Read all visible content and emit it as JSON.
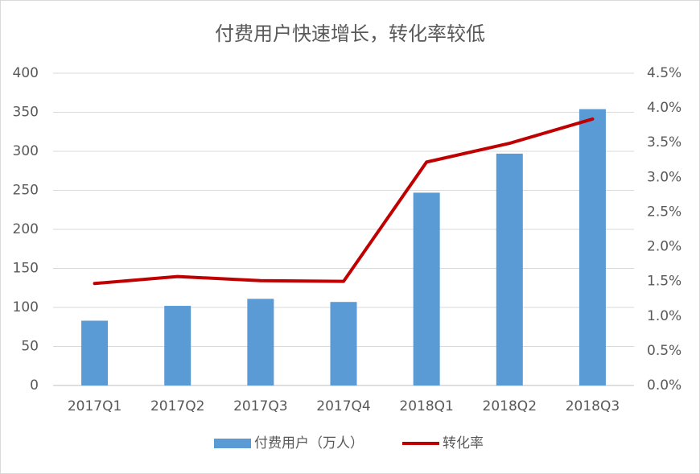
{
  "chart_data": {
    "type": "bar+line",
    "title": "付费用户快速增长，转化率较低",
    "categories": [
      "2017Q1",
      "2017Q2",
      "2017Q3",
      "2017Q4",
      "2018Q1",
      "2018Q2",
      "2018Q3"
    ],
    "series": [
      {
        "name": "付费用户（万人）",
        "type": "bar",
        "axis": "left",
        "color": "#5b9bd5",
        "values": [
          83,
          102,
          111,
          107,
          247,
          297,
          354
        ]
      },
      {
        "name": "转化率",
        "type": "line",
        "axis": "right",
        "color": "#c00000",
        "values": [
          1.47,
          1.57,
          1.51,
          1.5,
          3.22,
          3.49,
          3.84
        ]
      }
    ],
    "y_left": {
      "range": [
        0,
        400
      ],
      "ticks": [
        "0",
        "50",
        "100",
        "150",
        "200",
        "250",
        "300",
        "350",
        "400"
      ]
    },
    "y_right": {
      "range": [
        0,
        4.5
      ],
      "ticks": [
        "0.0%",
        "0.5%",
        "1.0%",
        "1.5%",
        "2.0%",
        "2.5%",
        "3.0%",
        "3.5%",
        "4.0%",
        "4.5%"
      ]
    },
    "grid": true,
    "legend_position": "bottom"
  }
}
